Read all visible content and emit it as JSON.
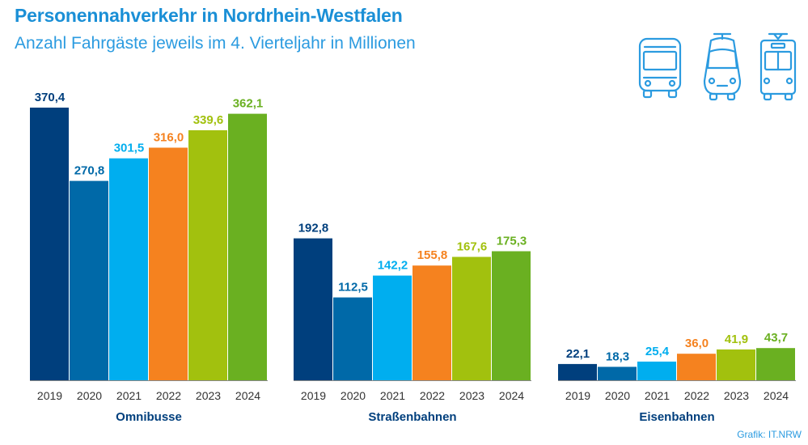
{
  "title": "Personennahverkehr in Nordrhein-Westfalen",
  "subtitle": "Anzahl Fahrgäste jeweils im 4. Vierteljahr in Millionen",
  "credit": "Grafik: IT.NRW",
  "icons": [
    "bus-icon",
    "tram-icon",
    "train-icon"
  ],
  "colors": {
    "accent": "#1a8fd6",
    "years": [
      "#003f7d",
      "#0069a8",
      "#00aeef",
      "#f5821f",
      "#a2c10e",
      "#6ab021"
    ],
    "axis": "#888888"
  },
  "chart_data": {
    "type": "bar",
    "groups": [
      "Omnibusse",
      "Straßenbahnen",
      "Eisenbahnen"
    ],
    "categories": [
      "2019",
      "2020",
      "2021",
      "2022",
      "2023",
      "2024"
    ],
    "series": [
      {
        "values": [
          370.4,
          270.8,
          301.5,
          316.0,
          339.6,
          362.1
        ],
        "labels": [
          "370,4",
          "270,8",
          "301,5",
          "316,0",
          "339,6",
          "362,1"
        ]
      },
      {
        "values": [
          192.8,
          112.5,
          142.2,
          155.8,
          167.6,
          175.3
        ],
        "labels": [
          "192,8",
          "112,5",
          "142,2",
          "155,8",
          "167,6",
          "175,3"
        ]
      },
      {
        "values": [
          22.1,
          18.3,
          25.4,
          36.0,
          41.9,
          43.7
        ],
        "labels": [
          "22,1",
          "18,3",
          "25,4",
          "36,0",
          "41,9",
          "43,7"
        ]
      }
    ],
    "ylim": [
      0,
      370.4
    ],
    "grid": false,
    "legend": "none"
  }
}
